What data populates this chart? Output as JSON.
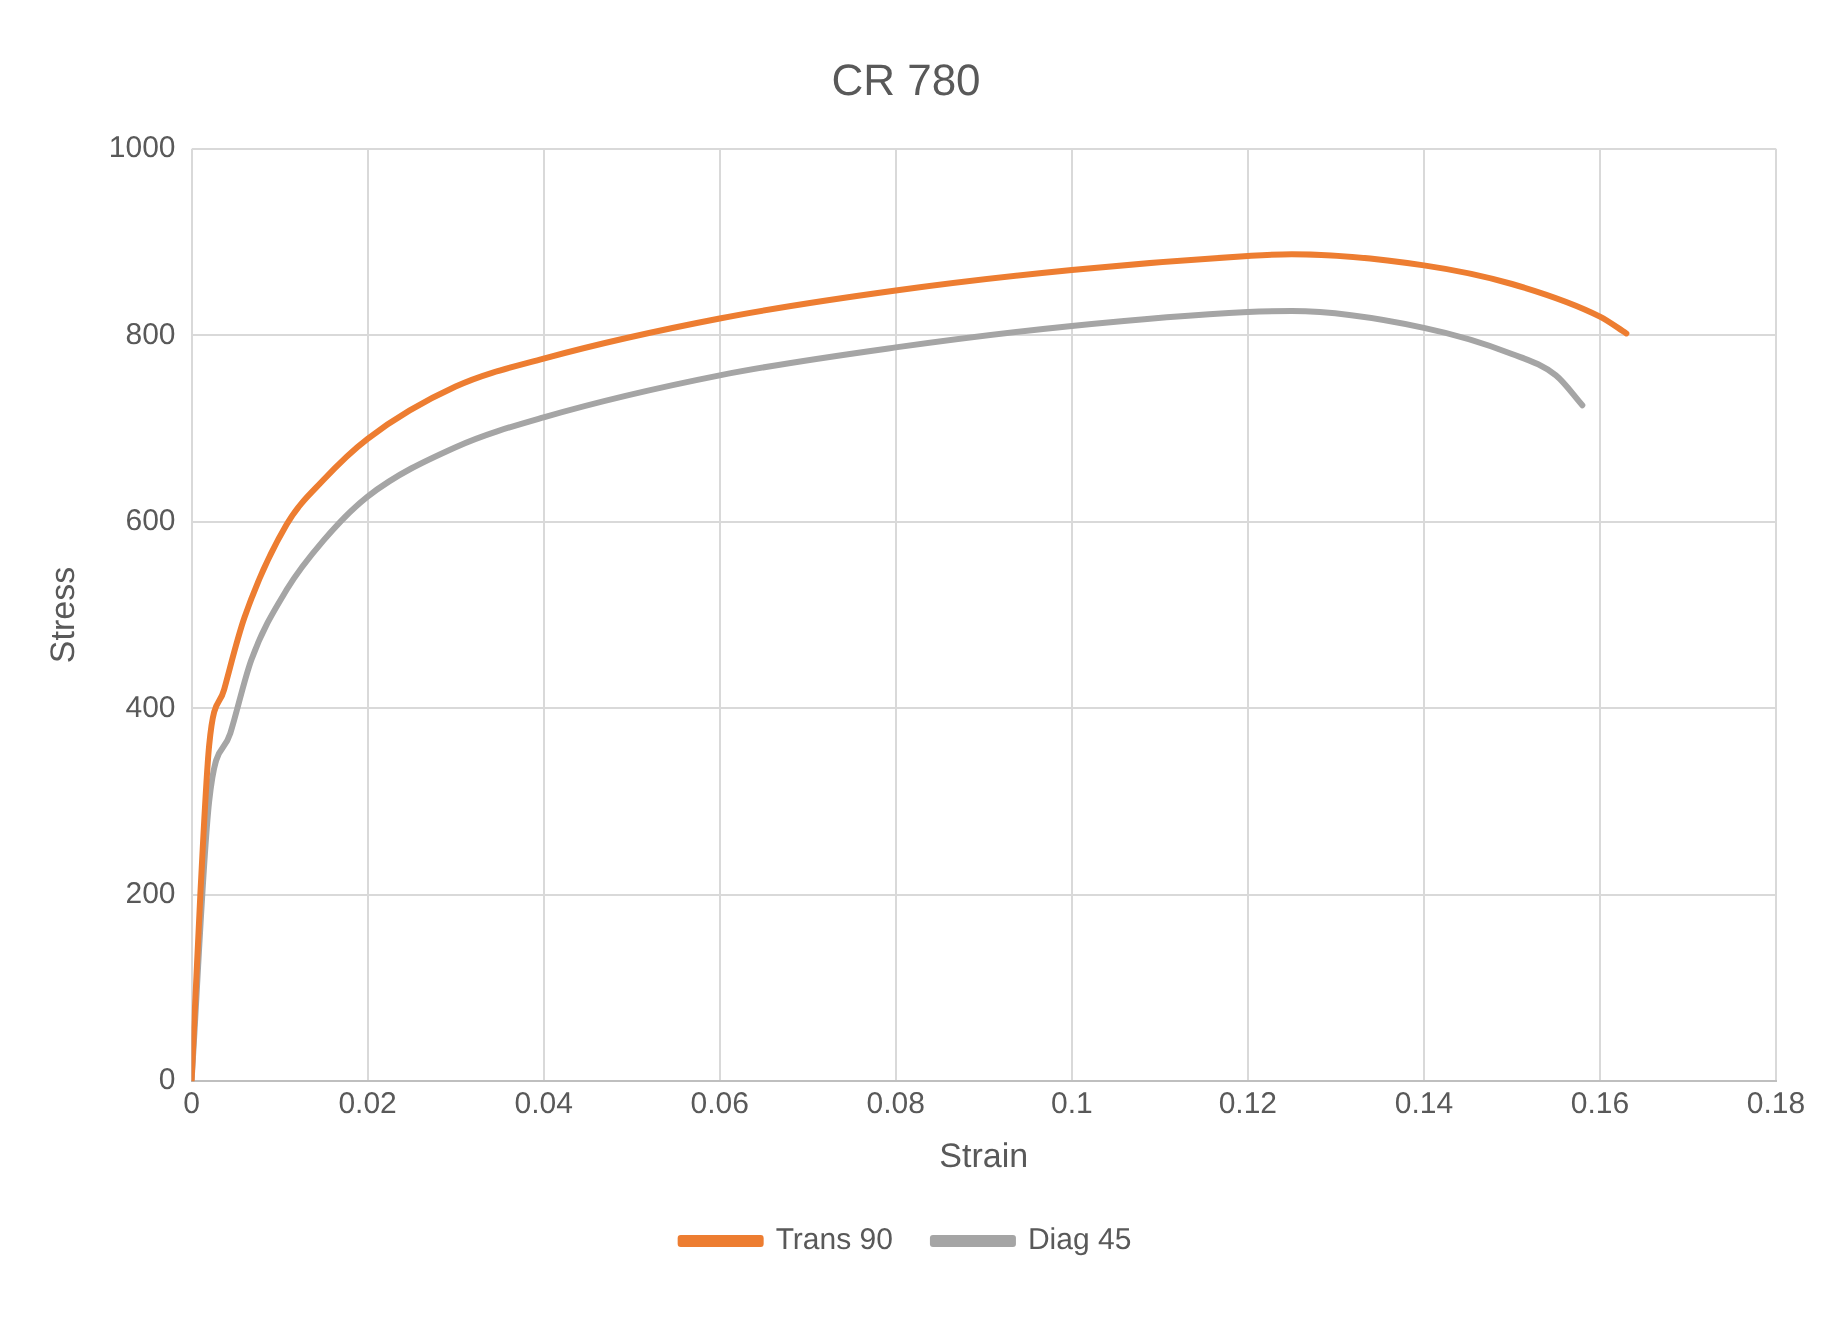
{
  "chart_data": {
    "type": "line",
    "title": "CR 780",
    "xlabel": "Strain",
    "ylabel": "Stress",
    "xlim": [
      0,
      0.18
    ],
    "xticks": [
      0,
      0.02,
      0.04,
      0.06,
      0.08,
      0.1,
      0.12,
      0.14,
      0.16,
      0.18
    ],
    "ylim": [
      0,
      1000
    ],
    "yticks": [
      0,
      200,
      400,
      600,
      800,
      1000
    ],
    "grid": true,
    "legend": "bottom",
    "marker": "none",
    "line_style": "solid",
    "series": [
      {
        "name": "Trans 90",
        "color": "#ed7d31",
        "x": [
          0,
          0.001,
          0.002,
          0.0037,
          0.006,
          0.0108,
          0.015,
          0.02,
          0.03,
          0.04,
          0.06,
          0.08,
          0.1,
          0.12,
          0.125,
          0.14,
          0.15,
          0.16,
          0.163
        ],
        "values": [
          0,
          200,
          360,
          420,
          497,
          597,
          645,
          689,
          745,
          775,
          818,
          848,
          870,
          885,
          887,
          875,
          855,
          820,
          802
        ]
      },
      {
        "name": "Diag 45",
        "color": "#a5a5a5",
        "x": [
          0,
          0.002,
          0.0044,
          0.0068,
          0.0108,
          0.015,
          0.02,
          0.03,
          0.04,
          0.06,
          0.08,
          0.1,
          0.12,
          0.125,
          0.14,
          0.15,
          0.155,
          0.158
        ],
        "values": [
          0,
          300,
          373,
          452,
          527,
          580,
          627,
          680,
          712,
          757,
          787,
          810,
          825,
          826,
          808,
          780,
          757,
          725
        ]
      }
    ]
  }
}
